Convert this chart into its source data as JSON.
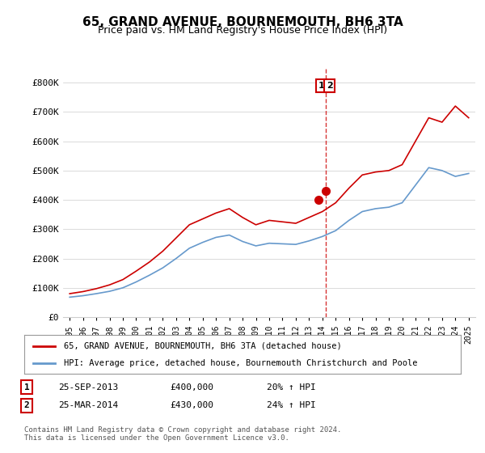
{
  "title": "65, GRAND AVENUE, BOURNEMOUTH, BH6 3TA",
  "subtitle": "Price paid vs. HM Land Registry's House Price Index (HPI)",
  "ylabel_ticks": [
    "£0",
    "£100K",
    "£200K",
    "£300K",
    "£400K",
    "£500K",
    "£600K",
    "£700K",
    "£800K"
  ],
  "ytick_values": [
    0,
    100000,
    200000,
    300000,
    400000,
    500000,
    600000,
    700000,
    800000
  ],
  "ylim": [
    0,
    850000
  ],
  "legend_line1": "65, GRAND AVENUE, BOURNEMOUTH, BH6 3TA (detached house)",
  "legend_line2": "HPI: Average price, detached house, Bournemouth Christchurch and Poole",
  "table_rows": [
    {
      "num": "1",
      "date": "25-SEP-2013",
      "price": "£400,000",
      "hpi": "20% ↑ HPI"
    },
    {
      "num": "2",
      "date": "25-MAR-2014",
      "price": "£430,000",
      "hpi": "24% ↑ HPI"
    }
  ],
  "footer": "Contains HM Land Registry data © Crown copyright and database right 2024.\nThis data is licensed under the Open Government Licence v3.0.",
  "line_color_red": "#cc0000",
  "line_color_blue": "#6699cc",
  "dashed_color": "#cc0000",
  "marker_color_1": "#cc0000",
  "marker_color_2": "#cc0000",
  "background_color": "#ffffff",
  "sale1_x": 2013.73,
  "sale2_x": 2014.23,
  "sale1_y": 400000,
  "sale2_y": 430000,
  "vline_x": 2014.23,
  "hpi_years": [
    1995,
    1996,
    1997,
    1998,
    1999,
    2000,
    2001,
    2002,
    2003,
    2004,
    2005,
    2006,
    2007,
    2008,
    2009,
    2010,
    2011,
    2012,
    2013,
    2014,
    2015,
    2016,
    2017,
    2018,
    2019,
    2020,
    2021,
    2022,
    2023,
    2024,
    2025
  ],
  "hpi_values": [
    68000,
    73000,
    80000,
    88000,
    100000,
    120000,
    143000,
    168000,
    200000,
    235000,
    255000,
    272000,
    280000,
    258000,
    243000,
    252000,
    250000,
    248000,
    260000,
    275000,
    295000,
    330000,
    360000,
    370000,
    375000,
    390000,
    450000,
    510000,
    500000,
    480000,
    490000
  ],
  "price_years": [
    1995,
    1996,
    1997,
    1998,
    1999,
    2000,
    2001,
    2002,
    2003,
    2004,
    2005,
    2006,
    2007,
    2008,
    2009,
    2010,
    2011,
    2012,
    2013,
    2014,
    2015,
    2016,
    2017,
    2018,
    2019,
    2020,
    2021,
    2022,
    2023,
    2024,
    2025
  ],
  "price_values": [
    80000,
    87000,
    97000,
    110000,
    128000,
    157000,
    188000,
    225000,
    270000,
    315000,
    335000,
    355000,
    370000,
    340000,
    315000,
    330000,
    325000,
    320000,
    340000,
    360000,
    390000,
    440000,
    485000,
    495000,
    500000,
    520000,
    600000,
    680000,
    665000,
    720000,
    680000
  ],
  "xlim_min": 1994.5,
  "xlim_max": 2025.5
}
